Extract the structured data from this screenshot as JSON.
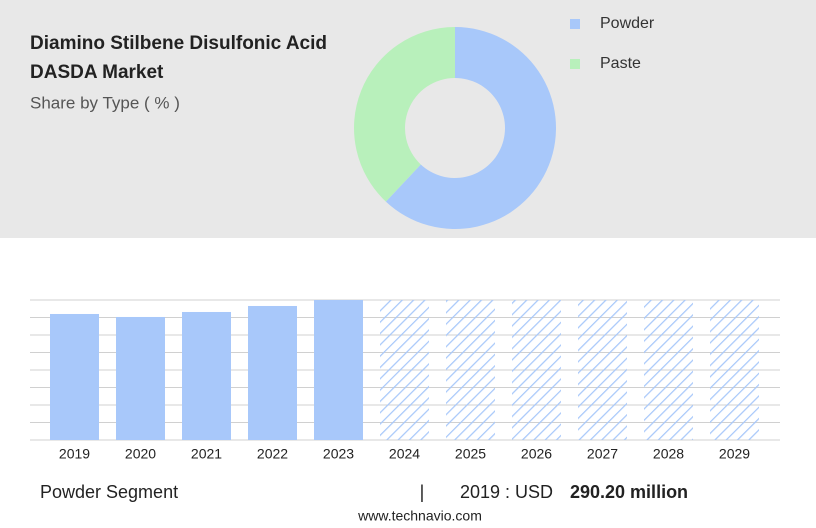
{
  "chart_data": [
    {
      "type": "pie",
      "title": "Diamino Stilbene Disulfonic Acid DASDA Market",
      "title_line2": "",
      "subtitle": "Share by Type ( % )",
      "categories": [
        "Powder",
        "Paste"
      ],
      "values": [
        62,
        38
      ],
      "colors": [
        "#a8c8fa",
        "#b8f0bb"
      ],
      "donut": true
    },
    {
      "type": "bar",
      "categories": [
        "2019",
        "2020",
        "2021",
        "2022",
        "2023",
        "2024",
        "2025",
        "2026",
        "2027",
        "2028",
        "2029"
      ],
      "values": [
        290.2,
        283.3,
        294.8,
        308.6,
        322.4,
        null,
        null,
        null,
        null,
        null,
        null
      ],
      "color": "#a8c8fa",
      "ylim": [
        0,
        322.4
      ],
      "forecast_hatched": true
    }
  ],
  "footer": {
    "segment": "Powder Segment",
    "separator": "|",
    "year_label": "2019 : USD",
    "value_label": "290.20 million",
    "website": "www.technavio.com"
  }
}
